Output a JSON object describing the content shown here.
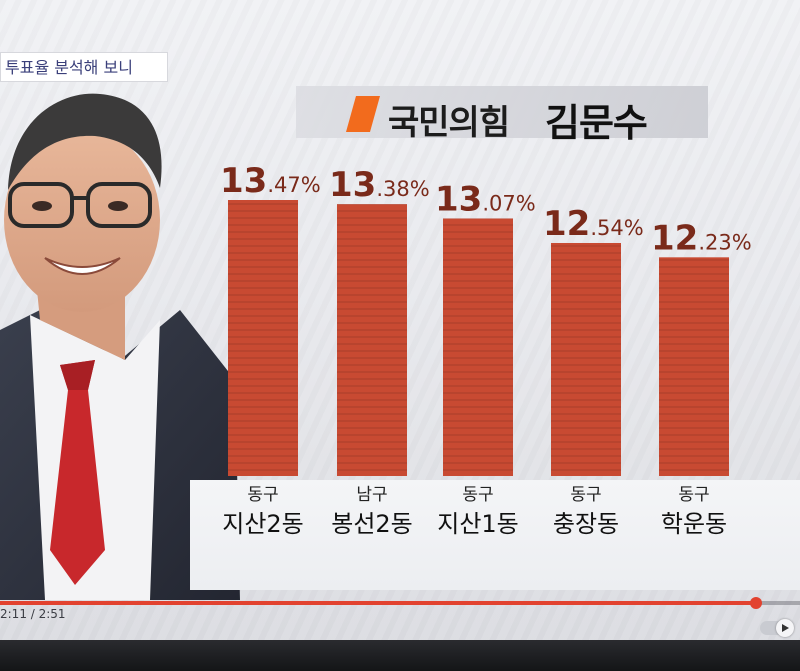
{
  "caption": "투표율 분석해 보니",
  "title": {
    "party": "국민의힘",
    "candidate": "김문수",
    "party_color": "#f26b1d"
  },
  "chart_data": {
    "type": "bar",
    "title": "국민의힘 김문수",
    "categories": [
      {
        "district": "동구",
        "dong": "지산2동"
      },
      {
        "district": "남구",
        "dong": "봉선2동"
      },
      {
        "district": "동구",
        "dong": "지산1동"
      },
      {
        "district": "동구",
        "dong": "충장동"
      },
      {
        "district": "동구",
        "dong": "학운동"
      }
    ],
    "values": [
      13.47,
      13.38,
      13.07,
      12.54,
      12.23
    ],
    "value_labels": [
      {
        "int": "13",
        "dec": ".47%"
      },
      {
        "int": "13",
        "dec": ".38%"
      },
      {
        "int": "13",
        "dec": ".07%"
      },
      {
        "int": "12",
        "dec": ".54%"
      },
      {
        "int": "12",
        "dec": ".23%"
      }
    ],
    "bar_color": "#c84a32",
    "label_color": "#7a2a1a",
    "grid": false
  },
  "player": {
    "time": "2:11 / 2:51",
    "progress": 0.945,
    "accent_color": "#e2422f"
  }
}
